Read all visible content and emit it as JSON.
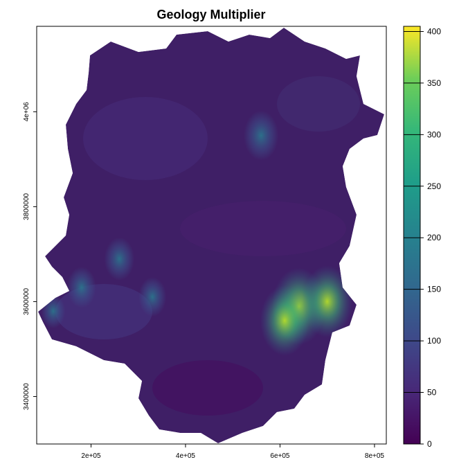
{
  "chart_data": {
    "type": "heatmap",
    "title": "Geology Multiplier",
    "xlabel": "",
    "ylabel": "",
    "x_ticks": [
      {
        "value": 200000,
        "label": "2e+05"
      },
      {
        "value": 400000,
        "label": "4e+05"
      },
      {
        "value": 600000,
        "label": "6e+05"
      },
      {
        "value": 800000,
        "label": "8e+05"
      }
    ],
    "y_ticks": [
      {
        "value": 3400000,
        "label": "3400000"
      },
      {
        "value": 3600000,
        "label": "3600000"
      },
      {
        "value": 3800000,
        "label": "3800000"
      },
      {
        "value": 4000000,
        "label": "4e+06"
      }
    ],
    "xlim": [
      85000,
      825000
    ],
    "ylim": [
      3300000,
      4180000
    ],
    "colorbar": {
      "min": 0,
      "max": 405,
      "palette": "viridis",
      "ticks": [
        0,
        50,
        100,
        150,
        200,
        250,
        300,
        350,
        400
      ],
      "tick_labels": [
        "0",
        "50",
        "100",
        "150",
        "200",
        "250",
        "300",
        "350",
        "400"
      ]
    },
    "hotspots": [
      {
        "x": 640000,
        "y": 3590000,
        "value": 330
      },
      {
        "x": 700000,
        "y": 3600000,
        "value": 300
      },
      {
        "x": 610000,
        "y": 3560000,
        "value": 290
      },
      {
        "x": 560000,
        "y": 3950000,
        "value": 170
      },
      {
        "x": 180000,
        "y": 3630000,
        "value": 120
      },
      {
        "x": 330000,
        "y": 3610000,
        "value": 110
      },
      {
        "x": 260000,
        "y": 3690000,
        "value": 130
      },
      {
        "x": 120000,
        "y": 3580000,
        "value": 80
      }
    ],
    "base_value": 12,
    "colors": {
      "no_data": "#ffffff"
    }
  }
}
